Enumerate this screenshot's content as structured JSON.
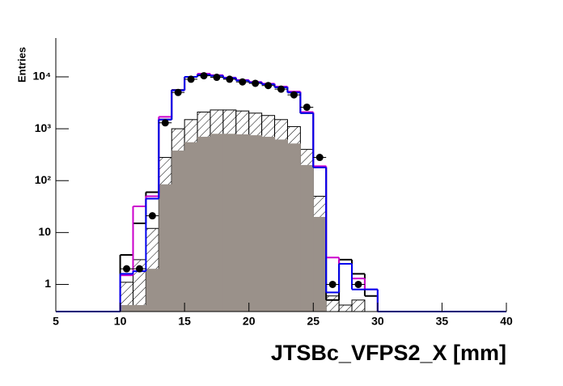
{
  "chart_data": {
    "type": "histogram",
    "x_label": "JTSBc_VFPS2_X [mm]",
    "y_label": "Entries",
    "bins": [
      5,
      6,
      7,
      8,
      9,
      10,
      11,
      12,
      13,
      14,
      15,
      16,
      17,
      18,
      19,
      20,
      21,
      22,
      23,
      24,
      25,
      26,
      27,
      28,
      29,
      30,
      31,
      32,
      33,
      34,
      35,
      36,
      37,
      38,
      39,
      40
    ],
    "xlim": [
      5,
      40
    ],
    "xticks": [
      5,
      10,
      15,
      20,
      25,
      30,
      35,
      40
    ],
    "ylim": [
      0.3,
      56000
    ],
    "log_y": true,
    "yticks": [
      1,
      10,
      {
        "value": 100,
        "label": "10²"
      },
      {
        "value": 1000,
        "label": "10³"
      },
      {
        "value": 10000,
        "label": "10⁴"
      }
    ],
    "series": [
      {
        "style": "hatch",
        "color": "#000000",
        "values": [
          0,
          0,
          0,
          0,
          0,
          1.1,
          3,
          12,
          280,
          1000,
          1500,
          2100,
          2300,
          2300,
          2200,
          2000,
          1800,
          1500,
          1100,
          400,
          50,
          0.6,
          0.4,
          0.5,
          0,
          0,
          0,
          0,
          0,
          0,
          0,
          0,
          0,
          0,
          0
        ]
      },
      {
        "style": "fill",
        "color": "#9a918a",
        "values": [
          0,
          0,
          0,
          0,
          0,
          0.4,
          0.4,
          2,
          85,
          380,
          550,
          700,
          800,
          800,
          780,
          750,
          700,
          620,
          520,
          200,
          20,
          0,
          0,
          0,
          0,
          0,
          0,
          0,
          0,
          0,
          0,
          0,
          0,
          0,
          0
        ]
      },
      {
        "style": "step",
        "color": "#000000",
        "values": [
          0,
          0,
          0,
          0,
          0,
          3.7,
          15,
          60,
          1500,
          5600,
          10000,
          11200,
          10500,
          9500,
          8500,
          7800,
          7200,
          6300,
          5000,
          2000,
          180,
          0.5,
          3,
          1.6,
          0.6,
          0,
          0,
          0,
          0,
          0,
          0,
          0,
          0,
          0,
          0
        ]
      },
      {
        "style": "step",
        "color": "#cc00cc",
        "values": [
          0,
          0,
          0,
          0,
          0,
          1.5,
          32,
          50,
          1700,
          5500,
          10000,
          11500,
          10800,
          9700,
          8700,
          8000,
          7400,
          6500,
          5200,
          2100,
          190,
          3.3,
          2.5,
          1.3,
          0.8,
          0,
          0,
          0,
          0,
          0,
          0,
          0,
          0,
          0,
          0
        ]
      },
      {
        "style": "step",
        "color": "#0000ee",
        "values": [
          0,
          0,
          0,
          0,
          0,
          1.6,
          1.8,
          45,
          1500,
          5500,
          10000,
          11000,
          10500,
          9500,
          8500,
          7800,
          7200,
          6300,
          5000,
          2000,
          180,
          0.7,
          2.5,
          0.8,
          0.8,
          0,
          0,
          0,
          0,
          0,
          0,
          0,
          0,
          0,
          0
        ]
      },
      {
        "style": "points",
        "color": "#000000",
        "values": [
          null,
          null,
          null,
          null,
          null,
          2,
          2,
          21,
          1300,
          5000,
          9000,
          10500,
          9800,
          9000,
          8000,
          7500,
          6800,
          5800,
          4500,
          2600,
          280,
          1,
          null,
          1,
          null,
          null,
          null,
          null,
          null,
          null,
          null,
          null,
          null,
          null,
          null
        ]
      }
    ]
  }
}
